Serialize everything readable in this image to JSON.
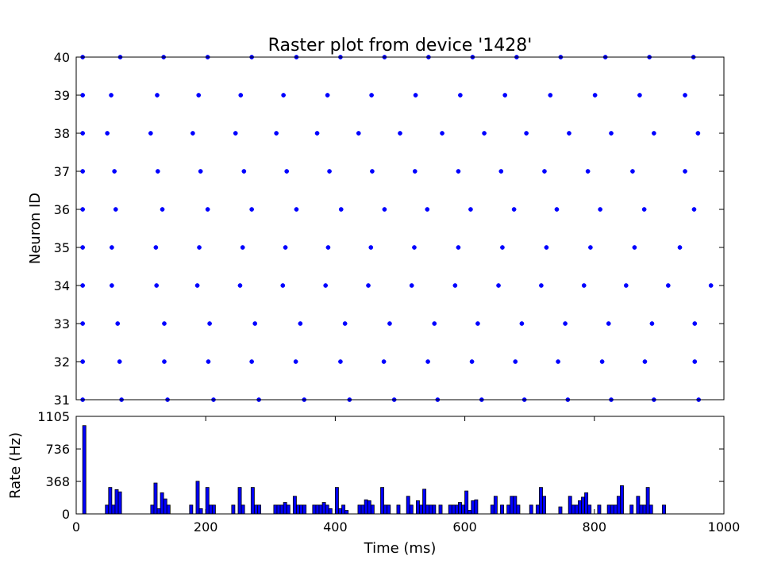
{
  "chart_data": [
    {
      "type": "scatter",
      "title": "Raster plot from device '1428'",
      "xlabel": "",
      "ylabel": "Neuron ID",
      "xlim": [
        0,
        1000
      ],
      "ylim": [
        31,
        40
      ],
      "yticks": [
        "31",
        "32",
        "33",
        "34",
        "35",
        "36",
        "37",
        "38",
        "39",
        "40"
      ],
      "grid": false,
      "color": "#0000ff",
      "spikes": [
        {
          "neuron": 31,
          "times": [
            10,
            70,
            141,
            212,
            282,
            352,
            422,
            491,
            558,
            626,
            692,
            759,
            826,
            892,
            961
          ]
        },
        {
          "neuron": 32,
          "times": [
            10,
            67,
            136,
            204,
            271,
            339,
            408,
            475,
            543,
            611,
            678,
            744,
            812,
            878,
            955
          ]
        },
        {
          "neuron": 33,
          "times": [
            10,
            64,
            136,
            206,
            276,
            346,
            415,
            484,
            553,
            620,
            688,
            755,
            822,
            889,
            955
          ]
        },
        {
          "neuron": 34,
          "times": [
            10,
            55,
            124,
            187,
            253,
            319,
            385,
            451,
            518,
            585,
            652,
            718,
            784,
            849,
            914,
            980
          ]
        },
        {
          "neuron": 35,
          "times": [
            10,
            55,
            123,
            190,
            257,
            323,
            389,
            455,
            522,
            590,
            658,
            726,
            794,
            862,
            932
          ]
        },
        {
          "neuron": 36,
          "times": [
            10,
            61,
            133,
            203,
            271,
            340,
            409,
            476,
            542,
            609,
            676,
            742,
            809,
            877,
            954
          ]
        },
        {
          "neuron": 37,
          "times": [
            10,
            59,
            126,
            192,
            259,
            325,
            391,
            457,
            523,
            590,
            656,
            723,
            790,
            859,
            940
          ]
        },
        {
          "neuron": 38,
          "times": [
            10,
            48,
            115,
            180,
            246,
            309,
            372,
            436,
            500,
            565,
            630,
            695,
            761,
            826,
            892,
            960
          ]
        },
        {
          "neuron": 39,
          "times": [
            10,
            54,
            125,
            189,
            254,
            320,
            388,
            456,
            524,
            593,
            662,
            732,
            801,
            870,
            940
          ]
        },
        {
          "neuron": 40,
          "times": [
            10,
            68,
            135,
            203,
            271,
            340,
            408,
            476,
            544,
            612,
            680,
            748,
            817,
            885,
            953
          ]
        }
      ]
    },
    {
      "type": "bar",
      "title": "",
      "xlabel": "Time (ms)",
      "ylabel": "Rate (Hz)",
      "xlim": [
        0,
        1000
      ],
      "ylim": [
        0,
        1105
      ],
      "xticks": [
        "0",
        "200",
        "400",
        "600",
        "800",
        "1000"
      ],
      "yticks": [
        "0",
        "368",
        "736",
        "1105"
      ],
      "bin_width": 5,
      "bar_color": "#0000ff",
      "edge_color": "#000000",
      "bins": [
        {
          "x": 10,
          "y": 1000
        },
        {
          "x": 45,
          "y": 100
        },
        {
          "x": 50,
          "y": 300
        },
        {
          "x": 55,
          "y": 100
        },
        {
          "x": 60,
          "y": 275
        },
        {
          "x": 65,
          "y": 250
        },
        {
          "x": 115,
          "y": 100
        },
        {
          "x": 120,
          "y": 350
        },
        {
          "x": 125,
          "y": 60
        },
        {
          "x": 130,
          "y": 240
        },
        {
          "x": 135,
          "y": 170
        },
        {
          "x": 140,
          "y": 100
        },
        {
          "x": 175,
          "y": 100
        },
        {
          "x": 185,
          "y": 370
        },
        {
          "x": 190,
          "y": 60
        },
        {
          "x": 200,
          "y": 300
        },
        {
          "x": 205,
          "y": 100
        },
        {
          "x": 210,
          "y": 100
        },
        {
          "x": 240,
          "y": 100
        },
        {
          "x": 250,
          "y": 300
        },
        {
          "x": 255,
          "y": 100
        },
        {
          "x": 270,
          "y": 300
        },
        {
          "x": 275,
          "y": 100
        },
        {
          "x": 280,
          "y": 100
        },
        {
          "x": 305,
          "y": 100
        },
        {
          "x": 310,
          "y": 100
        },
        {
          "x": 315,
          "y": 100
        },
        {
          "x": 320,
          "y": 130
        },
        {
          "x": 325,
          "y": 100
        },
        {
          "x": 335,
          "y": 200
        },
        {
          "x": 340,
          "y": 100
        },
        {
          "x": 345,
          "y": 100
        },
        {
          "x": 350,
          "y": 100
        },
        {
          "x": 365,
          "y": 100
        },
        {
          "x": 370,
          "y": 100
        },
        {
          "x": 375,
          "y": 100
        },
        {
          "x": 380,
          "y": 130
        },
        {
          "x": 385,
          "y": 100
        },
        {
          "x": 390,
          "y": 60
        },
        {
          "x": 400,
          "y": 300
        },
        {
          "x": 405,
          "y": 60
        },
        {
          "x": 410,
          "y": 100
        },
        {
          "x": 415,
          "y": 40
        },
        {
          "x": 435,
          "y": 100
        },
        {
          "x": 440,
          "y": 100
        },
        {
          "x": 445,
          "y": 160
        },
        {
          "x": 450,
          "y": 150
        },
        {
          "x": 455,
          "y": 100
        },
        {
          "x": 470,
          "y": 300
        },
        {
          "x": 475,
          "y": 100
        },
        {
          "x": 480,
          "y": 100
        },
        {
          "x": 495,
          "y": 100
        },
        {
          "x": 510,
          "y": 200
        },
        {
          "x": 515,
          "y": 100
        },
        {
          "x": 525,
          "y": 150
        },
        {
          "x": 530,
          "y": 100
        },
        {
          "x": 535,
          "y": 280
        },
        {
          "x": 540,
          "y": 100
        },
        {
          "x": 545,
          "y": 100
        },
        {
          "x": 550,
          "y": 100
        },
        {
          "x": 560,
          "y": 100
        },
        {
          "x": 575,
          "y": 100
        },
        {
          "x": 580,
          "y": 100
        },
        {
          "x": 585,
          "y": 100
        },
        {
          "x": 590,
          "y": 130
        },
        {
          "x": 595,
          "y": 100
        },
        {
          "x": 600,
          "y": 260
        },
        {
          "x": 605,
          "y": 40
        },
        {
          "x": 610,
          "y": 150
        },
        {
          "x": 615,
          "y": 160
        },
        {
          "x": 640,
          "y": 100
        },
        {
          "x": 645,
          "y": 200
        },
        {
          "x": 655,
          "y": 100
        },
        {
          "x": 665,
          "y": 100
        },
        {
          "x": 670,
          "y": 200
        },
        {
          "x": 675,
          "y": 200
        },
        {
          "x": 680,
          "y": 100
        },
        {
          "x": 700,
          "y": 100
        },
        {
          "x": 710,
          "y": 100
        },
        {
          "x": 715,
          "y": 300
        },
        {
          "x": 720,
          "y": 200
        },
        {
          "x": 745,
          "y": 80
        },
        {
          "x": 760,
          "y": 200
        },
        {
          "x": 765,
          "y": 100
        },
        {
          "x": 770,
          "y": 100
        },
        {
          "x": 775,
          "y": 150
        },
        {
          "x": 780,
          "y": 190
        },
        {
          "x": 785,
          "y": 240
        },
        {
          "x": 790,
          "y": 100
        },
        {
          "x": 805,
          "y": 100
        },
        {
          "x": 820,
          "y": 100
        },
        {
          "x": 825,
          "y": 100
        },
        {
          "x": 830,
          "y": 100
        },
        {
          "x": 835,
          "y": 200
        },
        {
          "x": 840,
          "y": 320
        },
        {
          "x": 855,
          "y": 100
        },
        {
          "x": 865,
          "y": 200
        },
        {
          "x": 870,
          "y": 100
        },
        {
          "x": 875,
          "y": 100
        },
        {
          "x": 880,
          "y": 300
        },
        {
          "x": 885,
          "y": 100
        },
        {
          "x": 905,
          "y": 100
        }
      ]
    }
  ]
}
